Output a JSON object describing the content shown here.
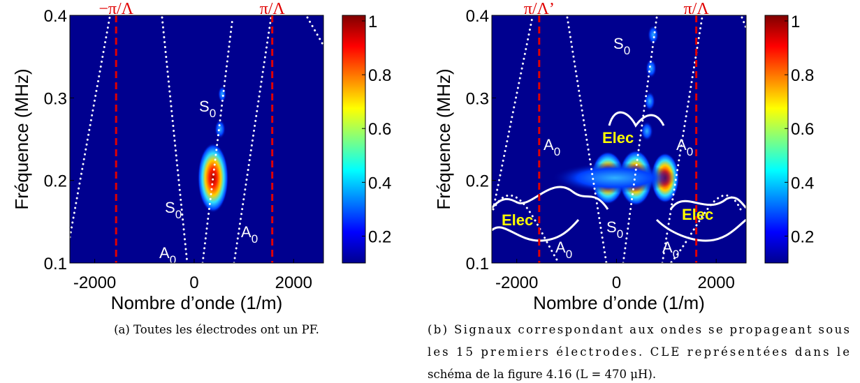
{
  "figures": [
    {
      "xlabel": "Nombre d’onde (1/m)",
      "ylabel": "Fréquence (MHz)",
      "xlim": [
        -2500,
        2600
      ],
      "ylim": [
        0.1,
        0.4
      ],
      "xticks": [
        -2000,
        0,
        2000
      ],
      "yticks": [
        0.1,
        0.2,
        0.3,
        0.4
      ],
      "colorbar": {
        "lim": [
          0.1,
          1
        ],
        "ticks": [
          0.2,
          0.4,
          0.6,
          0.8,
          1
        ]
      },
      "markers": [
        {
          "label": "−π/Λ",
          "x": -1570
        },
        {
          "label": "π/Λ",
          "x": 1570
        }
      ],
      "annotations": [
        {
          "text": "S",
          "sub": "0"
        },
        {
          "text": "S",
          "sub": "0"
        },
        {
          "text": "A",
          "sub": "0"
        },
        {
          "text": "A",
          "sub": "0"
        }
      ],
      "caption": [
        "(a) Toutes les électrodes ont un PF."
      ]
    },
    {
      "xlabel": "Nombre d’onde (1/m)",
      "ylabel": "Fréquence (MHz)",
      "xlim": [
        -2500,
        2600
      ],
      "ylim": [
        0.1,
        0.4
      ],
      "xticks": [
        -2000,
        0,
        2000
      ],
      "yticks": [
        0.1,
        0.2,
        0.3,
        0.4
      ],
      "colorbar": {
        "lim": [
          0.1,
          1
        ],
        "ticks": [
          0.2,
          0.4,
          0.6,
          0.8,
          1
        ]
      },
      "markers": [
        {
          "label": "π/Λ’",
          "x": -1550
        },
        {
          "label": "π/Λ",
          "x": 1600
        }
      ],
      "annotations": [
        {
          "text": "S",
          "sub": "0"
        },
        {
          "text": "Elec"
        },
        {
          "text": "A",
          "sub": "0"
        },
        {
          "text": "A",
          "sub": "0"
        },
        {
          "text": "Elec"
        },
        {
          "text": "Elec"
        },
        {
          "text": "S",
          "sub": "0"
        },
        {
          "text": "A",
          "sub": "0"
        },
        {
          "text": "A",
          "sub": "0"
        }
      ],
      "caption": [
        "(b) Signaux correspondant aux ondes se propageant sous",
        "les 15 premiers électrodes. CLE représentées dans le",
        "schéma de la figure 4.16 (L = 470 μH)."
      ]
    }
  ]
}
